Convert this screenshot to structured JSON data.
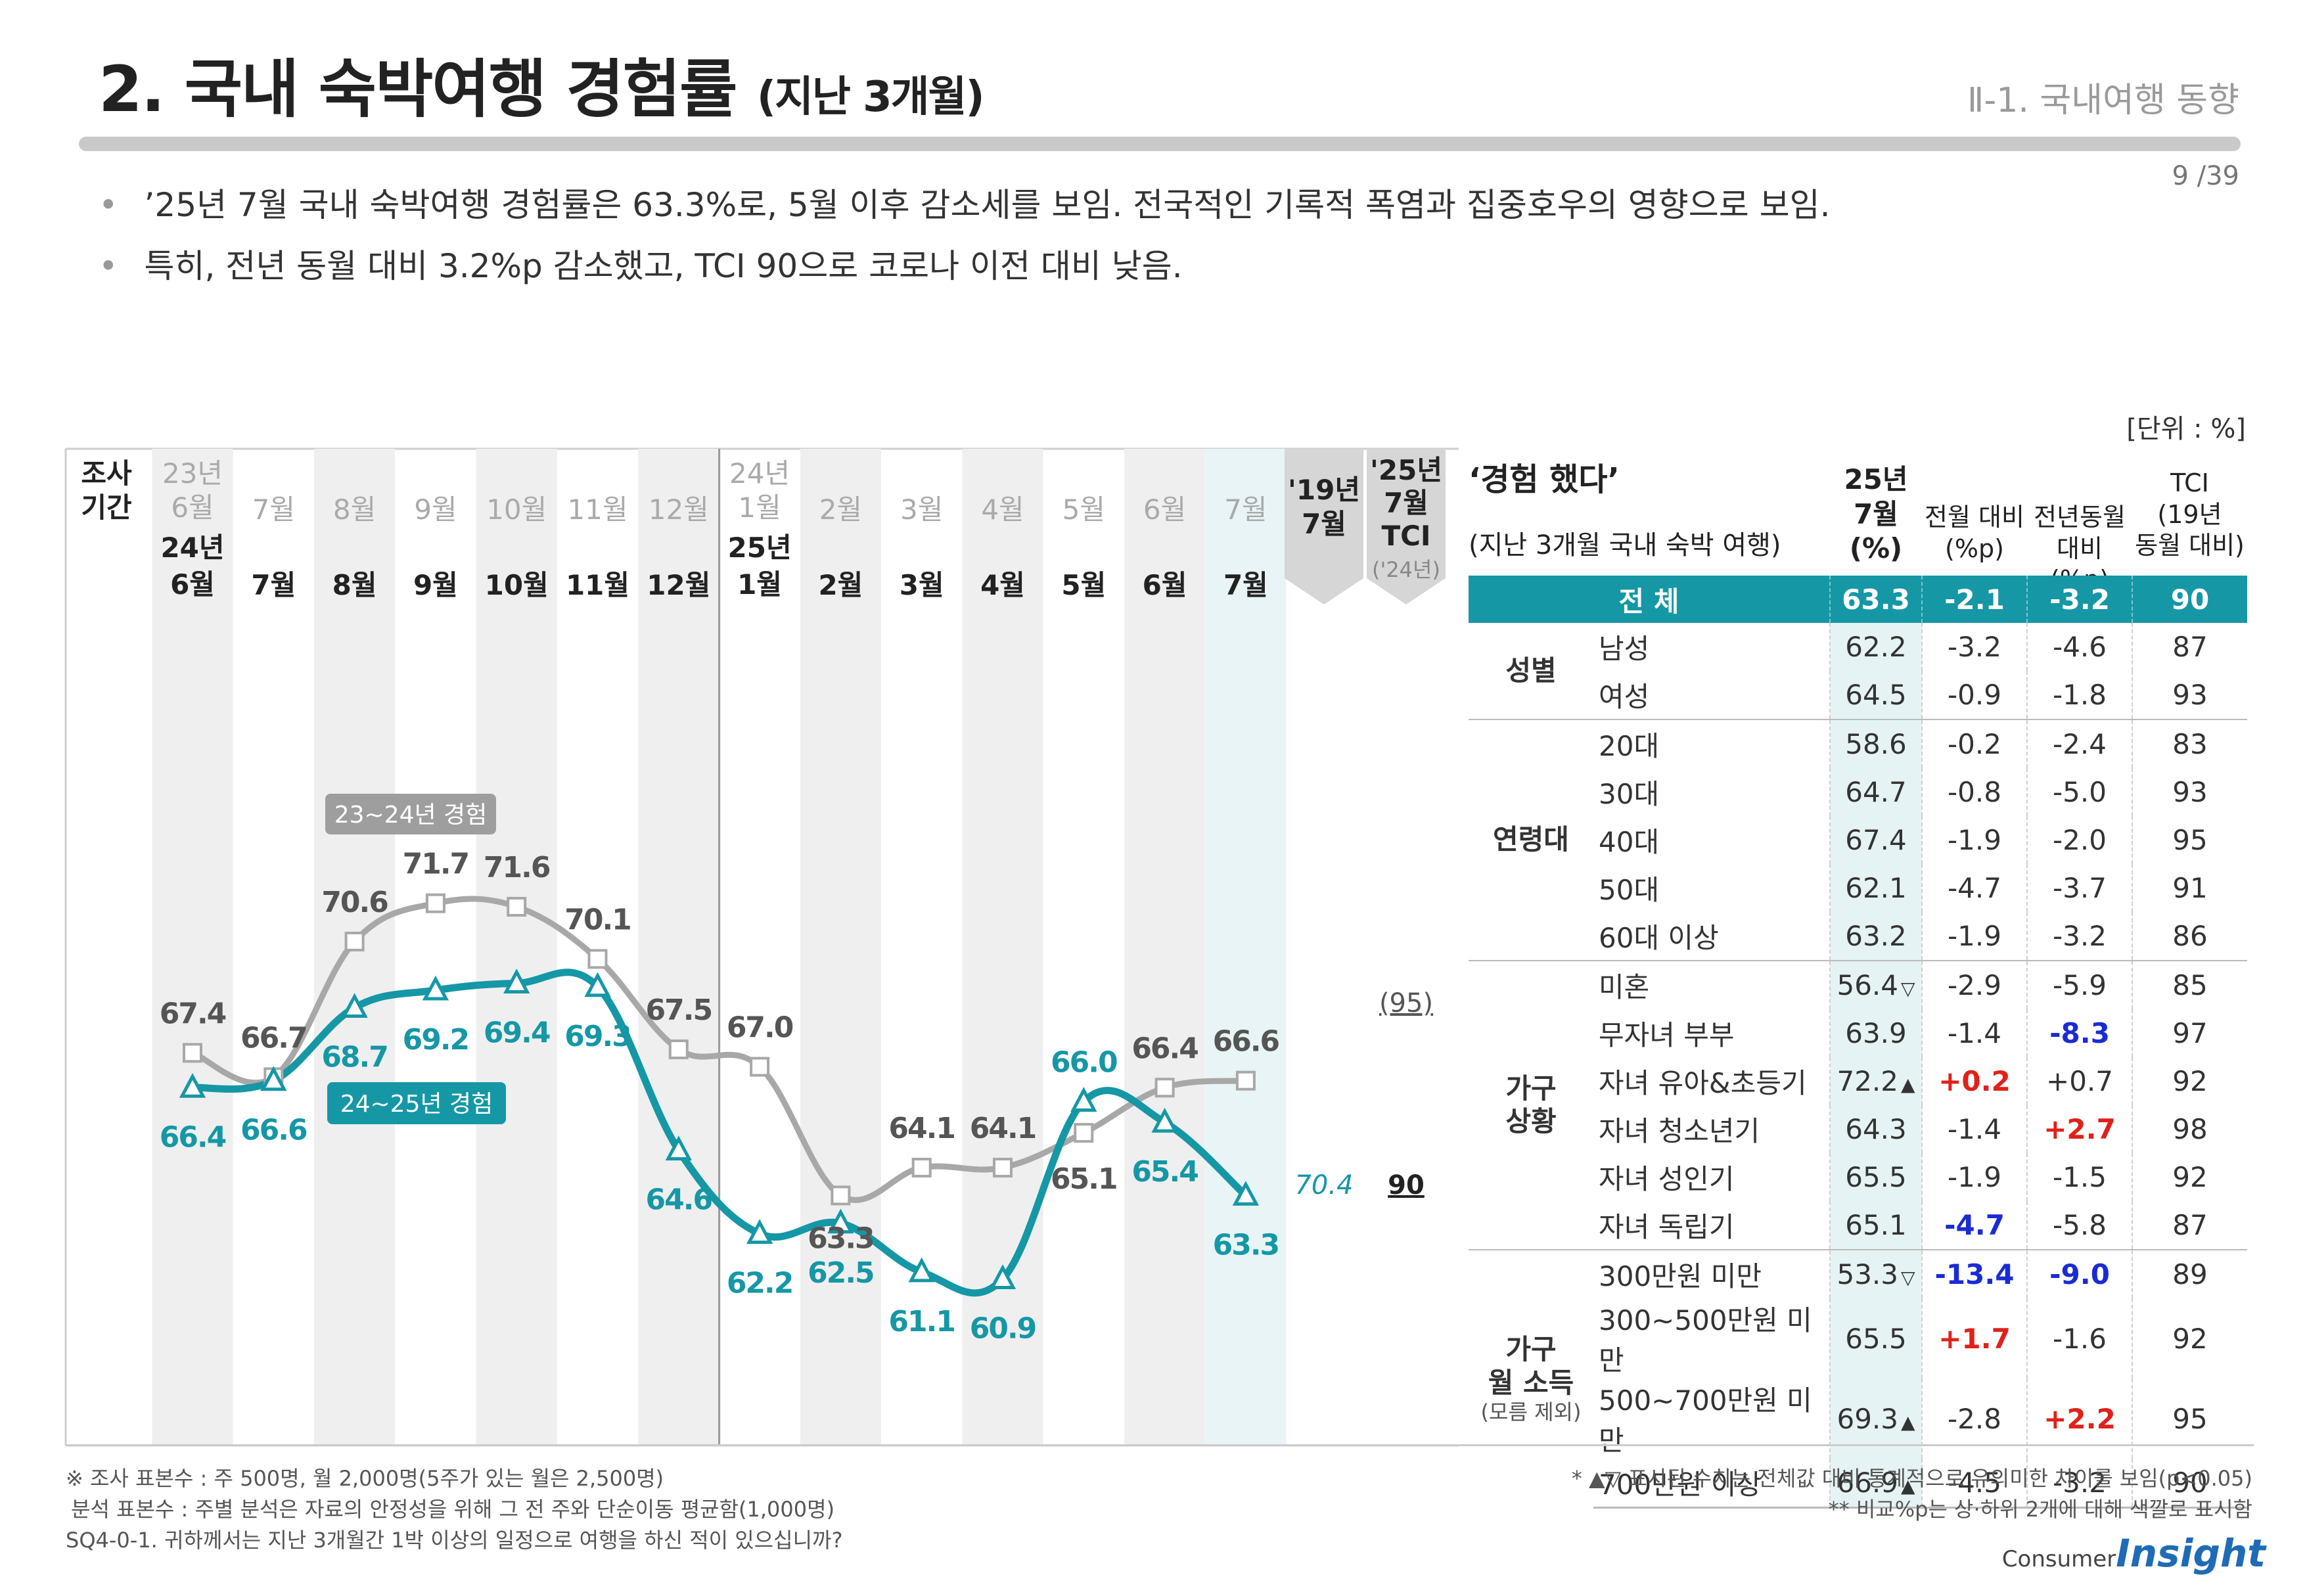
{
  "header": {
    "title": "2. 국내 숙박여행 경험률",
    "title_sub": "(지난 3개월)",
    "section": "Ⅱ-1. 국내여행 동향",
    "page": "9 /39"
  },
  "bullets": [
    "’25년 7월 국내 숙박여행 경험률은 63.3%로, 5월 이후 감소세를 보임. 전국적인 기록적 폭염과 집중호우의 영향으로 보임.",
    "특히, 전년 동월 대비 3.2%p 감소했고, TCI 90으로 코로나 이전 대비 낮음."
  ],
  "unit": "[단위 : %]",
  "chart_data": {
    "type": "line",
    "period_label": "조사\n기간",
    "categories_prev": [
      "23년\n6월",
      "7월",
      "8월",
      "9월",
      "10월",
      "11월",
      "12월",
      "24년\n1월",
      "2월",
      "3월",
      "4월",
      "5월",
      "6월",
      "7월"
    ],
    "categories": [
      "24년\n6월",
      "7월",
      "8월",
      "9월",
      "10월",
      "11월",
      "12월",
      "25년\n1월",
      "2월",
      "3월",
      "4월",
      "5월",
      "6월",
      "7월"
    ],
    "series": [
      {
        "name": "23~24년 경험",
        "color": "#a8a8a8",
        "values": [
          67.4,
          66.7,
          70.6,
          71.7,
          71.6,
          70.1,
          67.5,
          67.0,
          63.3,
          64.1,
          64.1,
          65.1,
          66.4,
          66.6
        ]
      },
      {
        "name": "24~25년 경험",
        "color": "#1597a6",
        "values": [
          66.4,
          66.6,
          68.7,
          69.2,
          69.4,
          69.3,
          64.6,
          62.2,
          62.5,
          61.1,
          60.9,
          66.0,
          65.4,
          63.3
        ]
      }
    ],
    "ref_19": {
      "label": "'19년\n7월",
      "value": "70.4"
    },
    "ref_tci": {
      "label": "'25년\n7월\nTCI",
      "sub": "('24년)",
      "prev": "(95)",
      "value": "90"
    },
    "ylim": [
      58,
      75
    ]
  },
  "table": {
    "title": "‘경험 했다’",
    "subtitle": "(지난 3개월 국내 숙박 여행)",
    "col_heads": [
      "25년\n7월\n(%)",
      "전월 대비\n(%p)",
      "전년동월\n대비 (%p)",
      "TCI\n(19년\n동월 대비)"
    ],
    "total": {
      "label": "전    체",
      "v": "63.3",
      "m": "-2.1",
      "y": "-3.2",
      "t": "90"
    },
    "groups": [
      {
        "name": "성별",
        "note": "",
        "rows": [
          {
            "c": "남성",
            "v": "62.2",
            "mk": "",
            "m": "-3.2",
            "y": "-4.6",
            "t": "87",
            "mc": "",
            "yc": ""
          },
          {
            "c": "여성",
            "v": "64.5",
            "mk": "",
            "m": "-0.9",
            "y": "-1.8",
            "t": "93",
            "mc": "",
            "yc": ""
          }
        ]
      },
      {
        "name": "연령대",
        "note": "",
        "rows": [
          {
            "c": "20대",
            "v": "58.6",
            "mk": "",
            "m": "-0.2",
            "y": "-2.4",
            "t": "83",
            "mc": "",
            "yc": ""
          },
          {
            "c": "30대",
            "v": "64.7",
            "mk": "",
            "m": "-0.8",
            "y": "-5.0",
            "t": "93",
            "mc": "",
            "yc": ""
          },
          {
            "c": "40대",
            "v": "67.4",
            "mk": "",
            "m": "-1.9",
            "y": "-2.0",
            "t": "95",
            "mc": "",
            "yc": ""
          },
          {
            "c": "50대",
            "v": "62.1",
            "mk": "",
            "m": "-4.7",
            "y": "-3.7",
            "t": "91",
            "mc": "",
            "yc": ""
          },
          {
            "c": "60대 이상",
            "v": "63.2",
            "mk": "",
            "m": "-1.9",
            "y": "-3.2",
            "t": "86",
            "mc": "",
            "yc": ""
          }
        ]
      },
      {
        "name": "가구\n상황",
        "note": "",
        "rows": [
          {
            "c": "미혼",
            "v": "56.4",
            "mk": "▽",
            "m": "-2.9",
            "y": "-5.9",
            "t": "85",
            "mc": "",
            "yc": ""
          },
          {
            "c": "무자녀 부부",
            "v": "63.9",
            "mk": "",
            "m": "-1.4",
            "y": "-8.3",
            "t": "97",
            "mc": "",
            "yc": "blue"
          },
          {
            "c": "자녀 유아&초등기",
            "v": "72.2",
            "mk": "▲",
            "m": "+0.2",
            "y": "+0.7",
            "t": "92",
            "mc": "red",
            "yc": ""
          },
          {
            "c": "자녀 청소년기",
            "v": "64.3",
            "mk": "",
            "m": "-1.4",
            "y": "+2.7",
            "t": "98",
            "mc": "",
            "yc": "red"
          },
          {
            "c": "자녀 성인기",
            "v": "65.5",
            "mk": "",
            "m": "-1.9",
            "y": "-1.5",
            "t": "92",
            "mc": "",
            "yc": ""
          },
          {
            "c": "자녀 독립기",
            "v": "65.1",
            "mk": "",
            "m": "-4.7",
            "y": "-5.8",
            "t": "87",
            "mc": "blue",
            "yc": ""
          }
        ]
      },
      {
        "name": "가구\n월 소득",
        "note": "(모름 제외)",
        "rows": [
          {
            "c": "300만원 미만",
            "v": "53.3",
            "mk": "▽",
            "m": "-13.4",
            "y": "-9.0",
            "t": "89",
            "mc": "blue",
            "yc": "blue"
          },
          {
            "c": "300~500만원 미만",
            "v": "65.5",
            "mk": "",
            "m": "+1.7",
            "y": "-1.6",
            "t": "92",
            "mc": "red",
            "yc": ""
          },
          {
            "c": "500~700만원 미만",
            "v": "69.3",
            "mk": "▲",
            "m": "-2.8",
            "y": "+2.2",
            "t": "95",
            "mc": "",
            "yc": "red"
          },
          {
            "c": "700만원 이상",
            "v": "66.9",
            "mk": "▲",
            "m": "-4.5",
            "y": "-3.2",
            "t": "90",
            "mc": "",
            "yc": ""
          }
        ]
      }
    ]
  },
  "footnotes": {
    "left": [
      "※ 조사 표본수 : 주 500명, 월 2,000명(5주가 있는 월은 2,500명)",
      "분석 표본수 : 주별 분석은 자료의 안정성을 위해 그 전 주와 단순이동 평균함(1,000명)",
      "SQ4-0-1. 귀하께서는 지난 3개월간 1박 이상의 일정으로 여행을 하신 적이 있으십니까?"
    ],
    "right": [
      "* ▲▽ 표시된 수치는 전체값 대비 통계적으로 유의미한 차이를 보임(p<0.05)",
      "** 비교%p는 상·하위 2개에 대해 색깔로 표시함"
    ]
  },
  "logo": {
    "top": "Consumer",
    "main": "Insight"
  }
}
